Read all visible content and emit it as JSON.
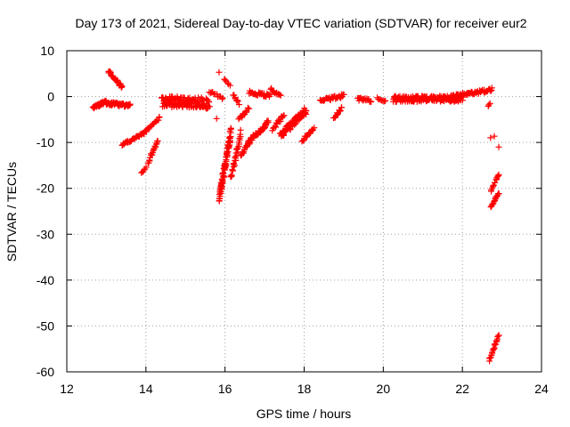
{
  "chart_data": {
    "type": "scatter",
    "title": "Day 173 of 2021, Sidereal Day-to-day VTEC variation (SDTVAR) for receiver eur2",
    "xlabel": "GPS time / hours",
    "ylabel": "SDTVAR / TECUs",
    "xlim": [
      12,
      24
    ],
    "ylim": [
      -60,
      10
    ],
    "x_ticks": [
      "12",
      "14",
      "16",
      "18",
      "20",
      "22",
      "24"
    ],
    "y_ticks": [
      "10",
      "0",
      "-10",
      "-20",
      "-30",
      "-40",
      "-50",
      "-60"
    ],
    "grid": true,
    "marker": "plus",
    "color": "#ff0000",
    "segments": [
      {
        "x0": 12.67,
        "x1": 13.0,
        "y0": -2.5,
        "y1": -1.0,
        "n": 30,
        "jitter": 0.7
      },
      {
        "x0": 13.0,
        "x1": 13.6,
        "y0": -1.5,
        "y1": -2.0,
        "n": 50,
        "jitter": 0.8
      },
      {
        "x0": 13.05,
        "x1": 13.4,
        "y0": 5.5,
        "y1": 2.0,
        "n": 28,
        "jitter": 0.6
      },
      {
        "x0": 13.4,
        "x1": 13.95,
        "y0": -10.5,
        "y1": -8.0,
        "n": 30,
        "jitter": 0.5
      },
      {
        "x0": 13.95,
        "x1": 14.35,
        "y0": -8.0,
        "y1": -4.5,
        "n": 20,
        "jitter": 0.6
      },
      {
        "x0": 13.88,
        "x1": 14.0,
        "y0": -16.8,
        "y1": -15.5,
        "n": 6,
        "jitter": 0.4
      },
      {
        "x0": 14.05,
        "x1": 14.3,
        "y0": -14.5,
        "y1": -9.5,
        "n": 18,
        "jitter": 0.6
      },
      {
        "x0": 14.4,
        "x1": 15.6,
        "y0": -1.0,
        "y1": -1.5,
        "n": 140,
        "jitter": 2.4
      },
      {
        "x0": 15.6,
        "x1": 15.95,
        "y0": 1.2,
        "y1": -0.5,
        "n": 12,
        "jitter": 0.6
      },
      {
        "x0": 15.8,
        "x1": 15.9,
        "y0": 5.3,
        "y1": 5.3,
        "n": 1,
        "jitter": 0
      },
      {
        "x0": 15.78,
        "x1": 15.8,
        "y0": -4.8,
        "y1": -4.8,
        "n": 1,
        "jitter": 0
      },
      {
        "x0": 15.85,
        "x1": 16.15,
        "y0": -22.5,
        "y1": -7.5,
        "n": 90,
        "jitter": 2.2
      },
      {
        "x0": 15.98,
        "x1": 16.12,
        "y0": 3.8,
        "y1": 2.5,
        "n": 6,
        "jitter": 0.4
      },
      {
        "x0": 16.15,
        "x1": 16.4,
        "y0": -18.0,
        "y1": -8.0,
        "n": 30,
        "jitter": 1.5
      },
      {
        "x0": 16.2,
        "x1": 16.35,
        "y0": 0.5,
        "y1": -1.5,
        "n": 10,
        "jitter": 0.6
      },
      {
        "x0": 16.35,
        "x1": 16.6,
        "y0": -5.0,
        "y1": -2.5,
        "n": 12,
        "jitter": 0.6
      },
      {
        "x0": 16.4,
        "x1": 16.6,
        "y0": -13.0,
        "y1": -10.0,
        "n": 14,
        "jitter": 0.8
      },
      {
        "x0": 16.6,
        "x1": 17.1,
        "y0": -10.0,
        "y1": -5.5,
        "n": 40,
        "jitter": 1.1
      },
      {
        "x0": 16.6,
        "x1": 17.15,
        "y0": 1.0,
        "y1": 0.2,
        "n": 30,
        "jitter": 0.8
      },
      {
        "x0": 17.15,
        "x1": 17.4,
        "y0": 1.8,
        "y1": 0.0,
        "n": 12,
        "jitter": 0.6
      },
      {
        "x0": 17.2,
        "x1": 17.5,
        "y0": -7.0,
        "y1": -4.0,
        "n": 16,
        "jitter": 0.9
      },
      {
        "x0": 17.4,
        "x1": 18.05,
        "y0": -8.5,
        "y1": -3.0,
        "n": 90,
        "jitter": 1.6
      },
      {
        "x0": 17.95,
        "x1": 18.25,
        "y0": -9.5,
        "y1": -7.0,
        "n": 16,
        "jitter": 0.6
      },
      {
        "x0": 18.4,
        "x1": 19.0,
        "y0": -0.8,
        "y1": 0.2,
        "n": 30,
        "jitter": 0.8
      },
      {
        "x0": 18.75,
        "x1": 18.95,
        "y0": -4.5,
        "y1": -2.5,
        "n": 12,
        "jitter": 0.8
      },
      {
        "x0": 19.35,
        "x1": 19.7,
        "y0": -0.5,
        "y1": -1.0,
        "n": 18,
        "jitter": 0.8
      },
      {
        "x0": 19.85,
        "x1": 20.05,
        "y0": -0.3,
        "y1": -0.8,
        "n": 8,
        "jitter": 0.6
      },
      {
        "x0": 20.25,
        "x1": 22.0,
        "y0": -0.5,
        "y1": -0.5,
        "n": 180,
        "jitter": 1.3
      },
      {
        "x0": 21.7,
        "x1": 22.75,
        "y0": 0.0,
        "y1": 1.5,
        "n": 60,
        "jitter": 0.8
      },
      {
        "x0": 22.65,
        "x1": 22.7,
        "y0": -2.0,
        "y1": -1.5,
        "n": 3,
        "jitter": 0.3
      },
      {
        "x0": 22.72,
        "x1": 22.8,
        "y0": -9.0,
        "y1": -8.5,
        "n": 2,
        "jitter": 0.3
      },
      {
        "x0": 22.9,
        "x1": 22.95,
        "y0": -11.0,
        "y1": -11.0,
        "n": 1,
        "jitter": 0
      },
      {
        "x0": 22.72,
        "x1": 22.92,
        "y0": -20.5,
        "y1": -17.0,
        "n": 14,
        "jitter": 0.4
      },
      {
        "x0": 22.72,
        "x1": 22.92,
        "y0": -24.0,
        "y1": -21.0,
        "n": 14,
        "jitter": 0.4
      },
      {
        "x0": 22.68,
        "x1": 22.92,
        "y0": -57.5,
        "y1": -52.0,
        "n": 22,
        "jitter": 0.4
      }
    ]
  }
}
